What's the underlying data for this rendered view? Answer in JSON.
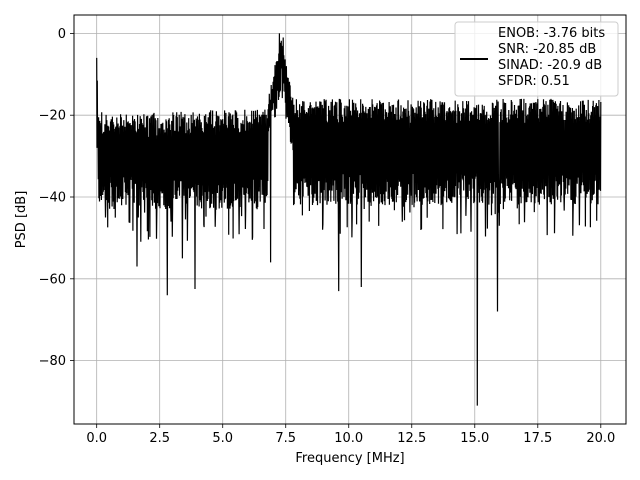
{
  "chart_data": {
    "type": "line",
    "title": "",
    "xlabel": "Frequency [MHz]",
    "ylabel": "PSD [dB]",
    "xlim": [
      -0.9,
      21.0
    ],
    "ylim": [
      -95.5,
      4.5
    ],
    "xticks": [
      0.0,
      2.5,
      5.0,
      7.5,
      10.0,
      12.5,
      15.0,
      17.5,
      20.0
    ],
    "xtick_labels": [
      "0.0",
      "2.5",
      "5.0",
      "7.5",
      "10.0",
      "12.5",
      "15.0",
      "17.5",
      "20.0"
    ],
    "yticks": [
      0,
      -20,
      -40,
      -60,
      -80
    ],
    "ytick_labels": [
      "0",
      "−20",
      "−40",
      "−60",
      "−80"
    ],
    "grid": true,
    "legend_position": "top-right",
    "legend_lines": [
      "ENOB: -3.76 bits",
      "SNR: -20.85 dB",
      "SINAD: -20.9 dB",
      "SFDR: 0.51"
    ],
    "series": [
      {
        "color": "#000000",
        "description": "dense noisy power spectral density trace from 0 to 20 MHz",
        "noise_floor_upper_db": -17,
        "noise_floor_lower_db": -42,
        "peak_points": [
          [
            0.0,
            -6
          ],
          [
            7.25,
            0
          ],
          [
            7.4,
            -1
          ]
        ],
        "dip_points": [
          [
            1.6,
            -57
          ],
          [
            2.8,
            -64
          ],
          [
            3.4,
            -55
          ],
          [
            3.9,
            -62.5
          ],
          [
            6.9,
            -56
          ],
          [
            9.6,
            -63
          ],
          [
            10.5,
            -62
          ],
          [
            15.1,
            -91
          ],
          [
            15.9,
            -68
          ]
        ]
      }
    ]
  }
}
